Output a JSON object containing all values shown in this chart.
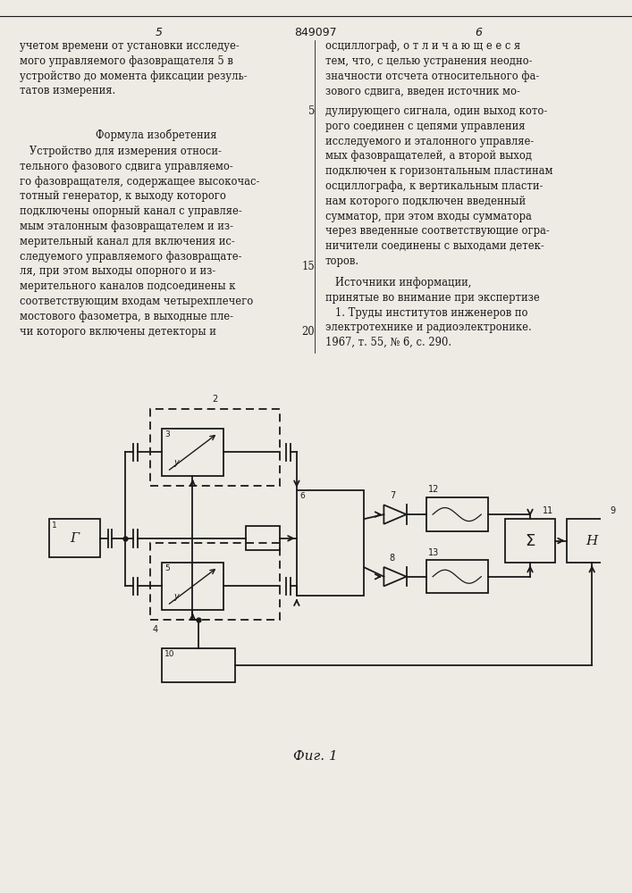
{
  "bg_color": "#eeebe4",
  "lc": "#1a1a1a",
  "lw": 1.3,
  "text_fs": 8.3,
  "fig_label": "Фиг. 1",
  "left_text_1": "учетом времени от установки исследуе-\nмого управляемого фазовращателя 5 в\nустройство до момента фиксации резуль-\nтатов измерения.",
  "left_text_2": "Формула изобретения",
  "left_text_3": "   Устройство для измерения относи-\nтельного фазового сдвига управляемо-\nго фазовращателя, содержащее высокочас-\nтотный генератор, к выходу которого\nподключены опорный канал с управляе-\nмым эталонным фазовращателем и из-\nмерительный канал для включения ис-\nследуемого управляемого фазовращате-\nля, при этом выходы опорного и из-\nмерительного каналов подсоединены к\nсоответствующим входам четырехплечего\nмостового фазометра, в выходные пле-\nчи которого включены детекторы и",
  "right_text_1": "осциллограф, о т л и ч а ю щ е е с я\nтем, что, с целью устранения неодно-\nзначности отсчета относительного фа-\nзового сдвига, введен источник мо-",
  "right_text_num": "5",
  "right_text_2": "дулирующего сигнала, один выход кото-\nрого соединен с цепями управления\nисследуемого и эталонного управляе-\nмых фазовращателей, а второй выход\nподключен к горизонтальным пластинам\nосциллографа, к вертикальным пласти-\nнам которого подключен введенный\nсумматор, при этом входы сумматора\nчерез введенные соответствующие огра-\nничители соединены с выходами детек-\nторов.",
  "right_text_3": "   Источники информации,\nпринятые во внимание при экспертизе\n   1. Труды институтов инженеров по\nэлектротехнике и радиоэлектронике.\n1967, т. 55, № 6, с. 290.",
  "right_num_2": "15",
  "right_num_3": "20"
}
